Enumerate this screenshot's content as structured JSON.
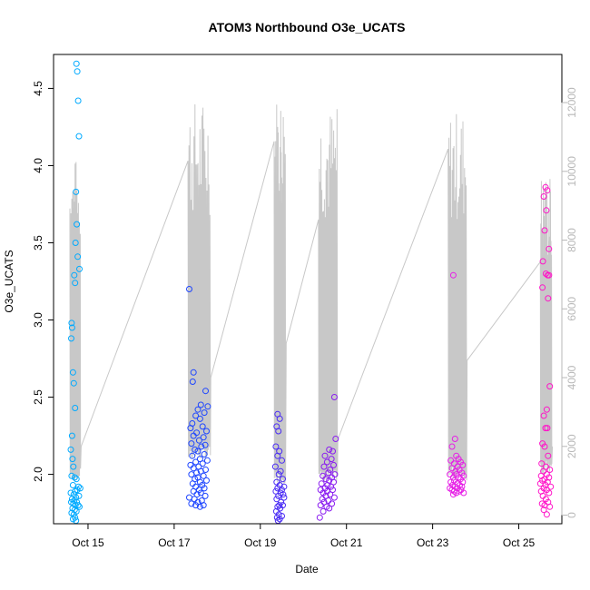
{
  "chart_data": {
    "type": "scatter",
    "title": "ATOM3 Northbound O3e_UCATS",
    "xlabel": "Date",
    "ylabel": "O3e_UCATS",
    "x_ticks": [
      "Oct 15",
      "Oct 17",
      "Oct 19",
      "Oct 21",
      "Oct 23",
      "Oct 25"
    ],
    "x_tick_days": [
      15,
      17,
      19,
      21,
      23,
      25
    ],
    "xlim_days": [
      14.2,
      26.0
    ],
    "ylim": [
      1.68,
      4.72
    ],
    "y_ticks": [
      2.0,
      2.5,
      3.0,
      3.5,
      4.0,
      4.5
    ],
    "y_tick_labels": [
      "2.0",
      "2.5",
      "3.0",
      "3.5",
      "4.0",
      "4.5"
    ],
    "right_axis": {
      "label": "",
      "ylim": [
        -250,
        13400
      ],
      "ticks": [
        0,
        2000,
        4000,
        6000,
        8000,
        10000,
        12000
      ],
      "tick_labels": [
        "0",
        "2000",
        "4000",
        "6000",
        "8000",
        "10000",
        "12000"
      ],
      "color": "#b8b8b8"
    },
    "altitude_line_color": "#c8c8c8",
    "grid": false,
    "legend": "none",
    "series": [
      {
        "color": "#00aaff",
        "points": [
          [
            14.73,
            4.66
          ],
          [
            14.75,
            4.61
          ],
          [
            14.77,
            4.42
          ],
          [
            14.79,
            4.19
          ],
          [
            14.72,
            3.83
          ],
          [
            14.74,
            3.62
          ],
          [
            14.71,
            3.5
          ],
          [
            14.76,
            3.41
          ],
          [
            14.8,
            3.33
          ],
          [
            14.68,
            3.29
          ],
          [
            14.7,
            3.24
          ],
          [
            14.62,
            2.98
          ],
          [
            14.63,
            2.95
          ],
          [
            14.61,
            2.88
          ],
          [
            14.65,
            2.66
          ],
          [
            14.67,
            2.59
          ],
          [
            14.7,
            2.43
          ],
          [
            14.63,
            2.25
          ],
          [
            14.6,
            2.16
          ],
          [
            14.64,
            2.1
          ],
          [
            14.66,
            2.05
          ],
          [
            14.62,
            1.99
          ],
          [
            14.69,
            1.98
          ],
          [
            14.73,
            1.97
          ],
          [
            14.65,
            1.93
          ],
          [
            14.78,
            1.92
          ],
          [
            14.82,
            1.91
          ],
          [
            14.75,
            1.9
          ],
          [
            14.7,
            1.89
          ],
          [
            14.6,
            1.88
          ],
          [
            14.67,
            1.87
          ],
          [
            14.79,
            1.86
          ],
          [
            14.72,
            1.85
          ],
          [
            14.63,
            1.84
          ],
          [
            14.68,
            1.83
          ],
          [
            14.74,
            1.82
          ],
          [
            14.61,
            1.82
          ],
          [
            14.66,
            1.81
          ],
          [
            14.71,
            1.8
          ],
          [
            14.77,
            1.8
          ],
          [
            14.8,
            1.79
          ],
          [
            14.64,
            1.78
          ],
          [
            14.69,
            1.77
          ],
          [
            14.73,
            1.76
          ],
          [
            14.62,
            1.75
          ],
          [
            14.67,
            1.74
          ],
          [
            14.7,
            1.72
          ],
          [
            14.65,
            1.71
          ],
          [
            14.72,
            1.7
          ]
        ]
      },
      {
        "color": "#1e46ff",
        "points": [
          [
            17.35,
            3.2
          ],
          [
            17.45,
            2.66
          ],
          [
            17.43,
            2.6
          ],
          [
            17.73,
            2.54
          ],
          [
            17.62,
            2.45
          ],
          [
            17.78,
            2.44
          ],
          [
            17.55,
            2.42
          ],
          [
            17.7,
            2.4
          ],
          [
            17.5,
            2.38
          ],
          [
            17.6,
            2.36
          ],
          [
            17.42,
            2.33
          ],
          [
            17.66,
            2.31
          ],
          [
            17.38,
            2.3
          ],
          [
            17.75,
            2.28
          ],
          [
            17.52,
            2.27
          ],
          [
            17.45,
            2.25
          ],
          [
            17.68,
            2.24
          ],
          [
            17.58,
            2.22
          ],
          [
            17.4,
            2.2
          ],
          [
            17.72,
            2.19
          ],
          [
            17.63,
            2.18
          ],
          [
            17.48,
            2.16
          ],
          [
            17.55,
            2.15
          ],
          [
            17.7,
            2.13
          ],
          [
            17.42,
            2.12
          ],
          [
            17.6,
            2.1
          ],
          [
            17.77,
            2.09
          ],
          [
            17.5,
            2.08
          ],
          [
            17.66,
            2.07
          ],
          [
            17.38,
            2.06
          ],
          [
            17.57,
            2.05
          ],
          [
            17.45,
            2.04
          ],
          [
            17.73,
            2.03
          ],
          [
            17.62,
            2.02
          ],
          [
            17.52,
            2.01
          ],
          [
            17.4,
            2.0
          ],
          [
            17.68,
            1.99
          ],
          [
            17.55,
            1.98
          ],
          [
            17.48,
            1.97
          ],
          [
            17.75,
            1.96
          ],
          [
            17.6,
            1.95
          ],
          [
            17.43,
            1.94
          ],
          [
            17.65,
            1.93
          ],
          [
            17.5,
            1.92
          ],
          [
            17.7,
            1.91
          ],
          [
            17.58,
            1.9
          ],
          [
            17.45,
            1.89
          ],
          [
            17.62,
            1.88
          ],
          [
            17.53,
            1.87
          ],
          [
            17.72,
            1.86
          ],
          [
            17.35,
            1.85
          ],
          [
            17.47,
            1.84
          ],
          [
            17.64,
            1.83
          ],
          [
            17.55,
            1.82
          ],
          [
            17.4,
            1.81
          ],
          [
            17.68,
            1.8
          ],
          [
            17.5,
            1.8
          ],
          [
            17.6,
            1.79
          ]
        ]
      },
      {
        "color": "#4a2cf5",
        "points": [
          [
            19.4,
            2.39
          ],
          [
            19.45,
            2.36
          ],
          [
            19.38,
            2.31
          ],
          [
            19.42,
            2.28
          ],
          [
            19.36,
            2.18
          ],
          [
            19.44,
            2.15
          ],
          [
            19.4,
            2.12
          ],
          [
            19.5,
            2.09
          ],
          [
            19.35,
            2.05
          ],
          [
            19.47,
            2.02
          ],
          [
            19.43,
            2.0
          ],
          [
            19.52,
            1.97
          ],
          [
            19.38,
            1.95
          ],
          [
            19.45,
            1.93
          ],
          [
            19.55,
            1.92
          ],
          [
            19.4,
            1.91
          ],
          [
            19.5,
            1.9
          ],
          [
            19.36,
            1.89
          ],
          [
            19.47,
            1.88
          ],
          [
            19.53,
            1.87
          ],
          [
            19.42,
            1.86
          ],
          [
            19.55,
            1.85
          ],
          [
            19.38,
            1.84
          ],
          [
            19.48,
            1.82
          ],
          [
            19.44,
            1.8
          ],
          [
            19.52,
            1.8
          ],
          [
            19.4,
            1.79
          ],
          [
            19.46,
            1.78
          ],
          [
            19.37,
            1.76
          ],
          [
            19.43,
            1.74
          ],
          [
            19.5,
            1.73
          ],
          [
            19.39,
            1.72
          ],
          [
            19.45,
            1.71
          ],
          [
            19.41,
            1.7
          ]
        ]
      },
      {
        "color": "#8a1cf0",
        "points": [
          [
            20.72,
            2.5
          ],
          [
            20.75,
            2.23
          ],
          [
            20.6,
            2.16
          ],
          [
            20.68,
            2.15
          ],
          [
            20.5,
            2.12
          ],
          [
            20.65,
            2.1
          ],
          [
            20.55,
            2.08
          ],
          [
            20.7,
            2.06
          ],
          [
            20.48,
            2.05
          ],
          [
            20.62,
            2.03
          ],
          [
            20.58,
            2.01
          ],
          [
            20.73,
            2.0
          ],
          [
            20.45,
            1.99
          ],
          [
            20.66,
            1.98
          ],
          [
            20.52,
            1.97
          ],
          [
            20.6,
            1.96
          ],
          [
            20.7,
            1.95
          ],
          [
            20.42,
            1.94
          ],
          [
            20.56,
            1.93
          ],
          [
            20.64,
            1.92
          ],
          [
            20.5,
            1.91
          ],
          [
            20.4,
            1.9
          ],
          [
            20.68,
            1.9
          ],
          [
            20.55,
            1.89
          ],
          [
            20.46,
            1.88
          ],
          [
            20.62,
            1.87
          ],
          [
            20.52,
            1.86
          ],
          [
            20.72,
            1.85
          ],
          [
            20.44,
            1.84
          ],
          [
            20.58,
            1.83
          ],
          [
            20.48,
            1.82
          ],
          [
            20.66,
            1.81
          ],
          [
            20.4,
            1.8
          ],
          [
            20.54,
            1.79
          ],
          [
            20.6,
            1.78
          ],
          [
            20.46,
            1.76
          ],
          [
            20.38,
            1.72
          ]
        ]
      },
      {
        "color": "#e61ee6",
        "points": [
          [
            23.48,
            3.29
          ],
          [
            23.52,
            2.23
          ],
          [
            23.45,
            2.18
          ],
          [
            23.55,
            2.12
          ],
          [
            23.6,
            2.1
          ],
          [
            23.42,
            2.09
          ],
          [
            23.65,
            2.08
          ],
          [
            23.5,
            2.07
          ],
          [
            23.7,
            2.06
          ],
          [
            23.58,
            2.05
          ],
          [
            23.45,
            2.04
          ],
          [
            23.62,
            2.03
          ],
          [
            23.53,
            2.02
          ],
          [
            23.68,
            2.01
          ],
          [
            23.4,
            2.0
          ],
          [
            23.55,
            2.0
          ],
          [
            23.72,
            1.99
          ],
          [
            23.48,
            1.98
          ],
          [
            23.6,
            1.98
          ],
          [
            23.65,
            1.97
          ],
          [
            23.5,
            1.96
          ],
          [
            23.42,
            1.95
          ],
          [
            23.7,
            1.95
          ],
          [
            23.57,
            1.94
          ],
          [
            23.46,
            1.93
          ],
          [
            23.63,
            1.93
          ],
          [
            23.52,
            1.92
          ],
          [
            23.68,
            1.92
          ],
          [
            23.4,
            1.91
          ],
          [
            23.58,
            1.91
          ],
          [
            23.45,
            1.9
          ],
          [
            23.66,
            1.9
          ],
          [
            23.5,
            1.89
          ],
          [
            23.62,
            1.89
          ],
          [
            23.55,
            1.88
          ],
          [
            23.72,
            1.88
          ],
          [
            23.48,
            1.87
          ]
        ]
      },
      {
        "color": "#ff14c8",
        "points": [
          [
            25.62,
            3.86
          ],
          [
            25.66,
            3.84
          ],
          [
            25.58,
            3.8
          ],
          [
            25.64,
            3.71
          ],
          [
            25.6,
            3.58
          ],
          [
            25.7,
            3.46
          ],
          [
            25.56,
            3.38
          ],
          [
            25.63,
            3.3
          ],
          [
            25.67,
            3.29
          ],
          [
            25.7,
            3.29
          ],
          [
            25.55,
            3.21
          ],
          [
            25.68,
            3.14
          ],
          [
            25.72,
            2.57
          ],
          [
            25.65,
            2.42
          ],
          [
            25.58,
            2.38
          ],
          [
            25.62,
            2.3
          ],
          [
            25.66,
            2.3
          ],
          [
            25.55,
            2.2
          ],
          [
            25.6,
            2.18
          ],
          [
            25.68,
            2.12
          ],
          [
            25.53,
            2.07
          ],
          [
            25.63,
            2.05
          ],
          [
            25.72,
            2.03
          ],
          [
            25.57,
            2.02
          ],
          [
            25.65,
            2.0
          ],
          [
            25.52,
            1.99
          ],
          [
            25.7,
            1.98
          ],
          [
            25.6,
            1.97
          ],
          [
            25.55,
            1.96
          ],
          [
            25.67,
            1.95
          ],
          [
            25.5,
            1.94
          ],
          [
            25.62,
            1.93
          ],
          [
            25.74,
            1.92
          ],
          [
            25.58,
            1.91
          ],
          [
            25.65,
            1.9
          ],
          [
            25.52,
            1.89
          ],
          [
            25.7,
            1.88
          ],
          [
            25.56,
            1.86
          ],
          [
            25.63,
            1.84
          ],
          [
            25.68,
            1.82
          ],
          [
            25.54,
            1.81
          ],
          [
            25.6,
            1.8
          ],
          [
            25.72,
            1.79
          ],
          [
            25.58,
            1.77
          ],
          [
            25.65,
            1.74
          ]
        ]
      }
    ]
  }
}
